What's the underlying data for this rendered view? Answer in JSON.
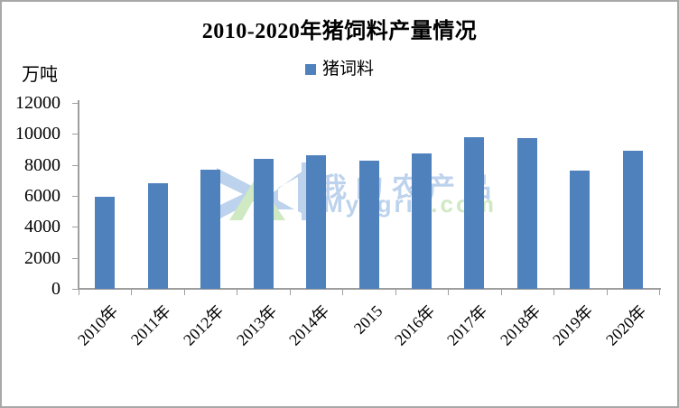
{
  "frame": {
    "background": "#ffffff",
    "border_color": "#a8a8a8"
  },
  "chart_data": {
    "type": "bar",
    "title": "2010-2020年猪饲料产量情况",
    "unit_label": "万吨",
    "xlabel": "",
    "ylabel": "万吨",
    "legend": {
      "label": "猪词料",
      "color": "#4f81bd",
      "position": "top-center"
    },
    "categories": [
      "2010年",
      "2011年",
      "2012年",
      "2013年",
      "2014年",
      "2015",
      "2016年",
      "2017年",
      "2018年",
      "2019年",
      "2020年"
    ],
    "values": [
      5940,
      6830,
      7680,
      8400,
      8620,
      8300,
      8760,
      9780,
      9720,
      7630,
      8920
    ],
    "ylim": [
      0,
      12000
    ],
    "yticks": [
      0,
      2000,
      4000,
      6000,
      8000,
      10000,
      12000
    ],
    "grid": false,
    "bar_color": "#4f81bd",
    "axis_color": "#9e9e9e",
    "xlabel_rotation_deg": 45
  },
  "watermark": {
    "cn_text": "我的农产品",
    "en_text_blue": "Myagri",
    "en_text_green": "c.com",
    "blue_color": "#bdd2ec",
    "green_color": "#cfe9c3"
  }
}
